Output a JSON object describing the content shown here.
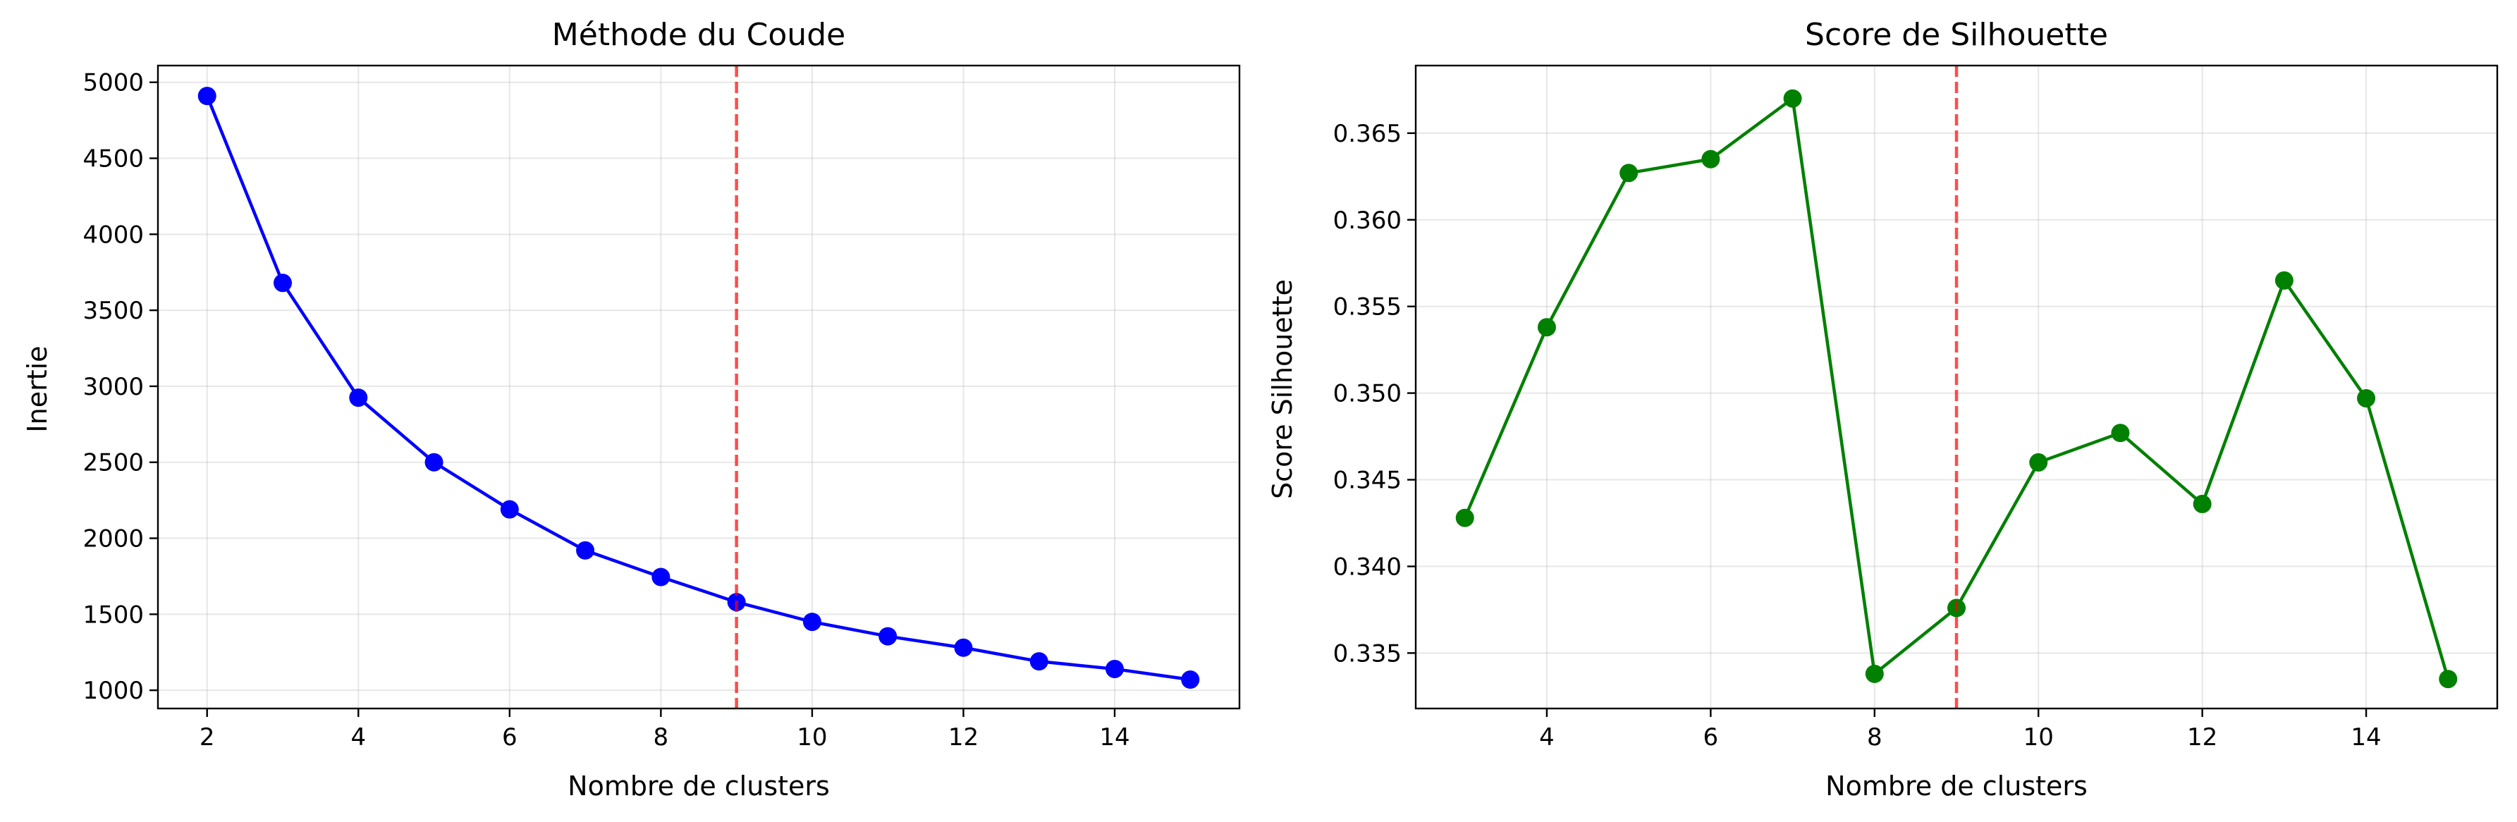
{
  "chart_data": [
    {
      "type": "line",
      "title": "Méthode du Coude",
      "xlabel": "Nombre de clusters",
      "ylabel": "Inertie",
      "x": [
        2,
        3,
        4,
        5,
        6,
        7,
        8,
        9,
        10,
        11,
        12,
        13,
        14,
        15
      ],
      "series": [
        {
          "values": [
            4910,
            3680,
            2925,
            2500,
            2190,
            1920,
            1745,
            1580,
            1450,
            1355,
            1280,
            1190,
            1140,
            1070
          ],
          "color": "#0000ff",
          "marker": "circle"
        }
      ],
      "xlim": [
        1.35,
        15.65
      ],
      "ylim": [
        880,
        5110
      ],
      "xticks": [
        2,
        4,
        6,
        8,
        10,
        12,
        14
      ],
      "yticks": [
        1000,
        1500,
        2000,
        2500,
        3000,
        3500,
        4000,
        4500,
        5000
      ],
      "ytick_labels": [
        "1000",
        "1500",
        "2000",
        "2500",
        "3000",
        "3500",
        "4000",
        "4500",
        "5000"
      ],
      "vline": {
        "x": 9,
        "color": "#ff0000",
        "style": "dashed"
      },
      "grid": true
    },
    {
      "type": "line",
      "title": "Score de Silhouette",
      "xlabel": "Nombre de clusters",
      "ylabel": "Score Silhouette",
      "x": [
        3,
        4,
        5,
        6,
        7,
        8,
        9,
        10,
        11,
        12,
        13,
        14,
        15
      ],
      "series": [
        {
          "values": [
            0.3428,
            0.3538,
            0.3627,
            0.3635,
            0.367,
            0.3338,
            0.3376,
            0.346,
            0.3477,
            0.3436,
            0.3565,
            0.3497,
            0.3335
          ],
          "color": "#008000",
          "marker": "circle"
        }
      ],
      "xlim": [
        2.4,
        15.6
      ],
      "ylim": [
        0.3318,
        0.3689
      ],
      "xticks": [
        4,
        6,
        8,
        10,
        12,
        14
      ],
      "yticks": [
        0.335,
        0.34,
        0.345,
        0.35,
        0.355,
        0.36,
        0.365
      ],
      "ytick_labels": [
        "0.335",
        "0.340",
        "0.345",
        "0.350",
        "0.355",
        "0.360",
        "0.365"
      ],
      "vline": {
        "x": 9,
        "color": "#ff0000",
        "style": "dashed"
      },
      "grid": true
    }
  ]
}
